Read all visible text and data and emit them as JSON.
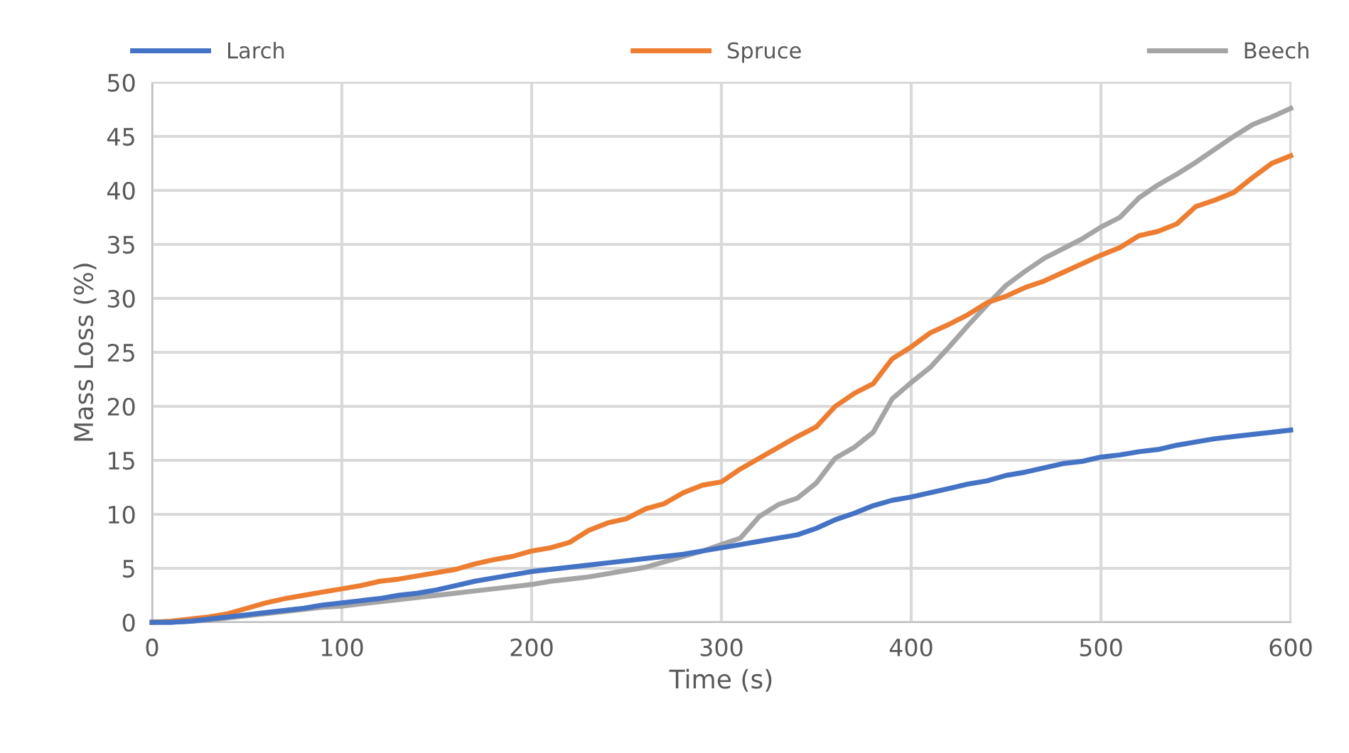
{
  "chart_data": {
    "type": "line",
    "xlabel": "Time (s)",
    "ylabel": "Mass Loss (%)",
    "x": [
      0,
      10,
      20,
      30,
      40,
      50,
      60,
      70,
      80,
      90,
      100,
      110,
      120,
      130,
      140,
      150,
      160,
      170,
      180,
      190,
      200,
      210,
      220,
      230,
      240,
      250,
      260,
      270,
      280,
      290,
      300,
      310,
      320,
      330,
      340,
      350,
      360,
      370,
      380,
      390,
      400,
      410,
      420,
      430,
      440,
      450,
      460,
      470,
      480,
      490,
      500,
      510,
      520,
      530,
      540,
      550,
      560,
      570,
      580,
      590,
      600
    ],
    "series": [
      {
        "name": "Larch",
        "color": "#4472c4",
        "values": [
          0,
          0,
          0.1,
          0.3,
          0.5,
          0.7,
          0.9,
          1.1,
          1.3,
          1.6,
          1.8,
          2.0,
          2.2,
          2.5,
          2.7,
          3.0,
          3.4,
          3.8,
          4.1,
          4.4,
          4.7,
          4.9,
          5.1,
          5.3,
          5.5,
          5.7,
          5.9,
          6.1,
          6.3,
          6.6,
          6.9,
          7.2,
          7.5,
          7.8,
          8.1,
          8.7,
          9.5,
          10.1,
          10.8,
          11.3,
          11.6,
          12.0,
          12.4,
          12.8,
          13.1,
          13.6,
          13.9,
          14.3,
          14.7,
          14.9,
          15.3,
          15.5,
          15.8,
          16.0,
          16.4,
          16.7,
          17.0,
          17.2,
          17.4,
          17.6,
          17.8
        ]
      },
      {
        "name": "Spruce",
        "color": "#ed7d31",
        "values": [
          0,
          0.1,
          0.3,
          0.5,
          0.8,
          1.3,
          1.8,
          2.2,
          2.5,
          2.8,
          3.1,
          3.4,
          3.8,
          4.0,
          4.3,
          4.6,
          4.9,
          5.4,
          5.8,
          6.1,
          6.6,
          6.9,
          7.4,
          8.5,
          9.2,
          9.6,
          10.5,
          11.0,
          12.0,
          12.7,
          13.0,
          14.2,
          15.2,
          16.2,
          17.2,
          18.1,
          20.0,
          21.2,
          22.1,
          24.4,
          25.5,
          26.8,
          27.6,
          28.5,
          29.6,
          30.2,
          31.0,
          31.6,
          32.4,
          33.2,
          34.0,
          34.7,
          35.8,
          36.2,
          36.9,
          38.5,
          39.1,
          39.8,
          41.2,
          42.5,
          43.2
        ]
      },
      {
        "name": "Beech",
        "color": "#a5a5a5",
        "values": [
          0,
          0,
          0.1,
          0.2,
          0.4,
          0.6,
          0.8,
          1.0,
          1.2,
          1.4,
          1.5,
          1.7,
          1.9,
          2.1,
          2.3,
          2.5,
          2.7,
          2.9,
          3.1,
          3.3,
          3.5,
          3.8,
          4.0,
          4.2,
          4.5,
          4.8,
          5.1,
          5.6,
          6.1,
          6.6,
          7.2,
          7.8,
          9.8,
          10.9,
          11.5,
          12.9,
          15.2,
          16.2,
          17.6,
          20.7,
          22.2,
          23.6,
          25.5,
          27.5,
          29.4,
          31.2,
          32.5,
          33.7,
          34.6,
          35.5,
          36.6,
          37.5,
          39.3,
          40.5,
          41.5,
          42.6,
          43.8,
          45.0,
          46.1,
          46.8,
          47.6
        ]
      }
    ],
    "xlim": [
      0,
      600
    ],
    "xticks": [
      0,
      100,
      200,
      300,
      400,
      500,
      600
    ],
    "ylim": [
      0,
      50
    ],
    "yticks": [
      0,
      5,
      10,
      15,
      20,
      25,
      30,
      35,
      40,
      45,
      50
    ],
    "grid": true,
    "legend": "top",
    "marker": "none",
    "line_style": "solid"
  }
}
